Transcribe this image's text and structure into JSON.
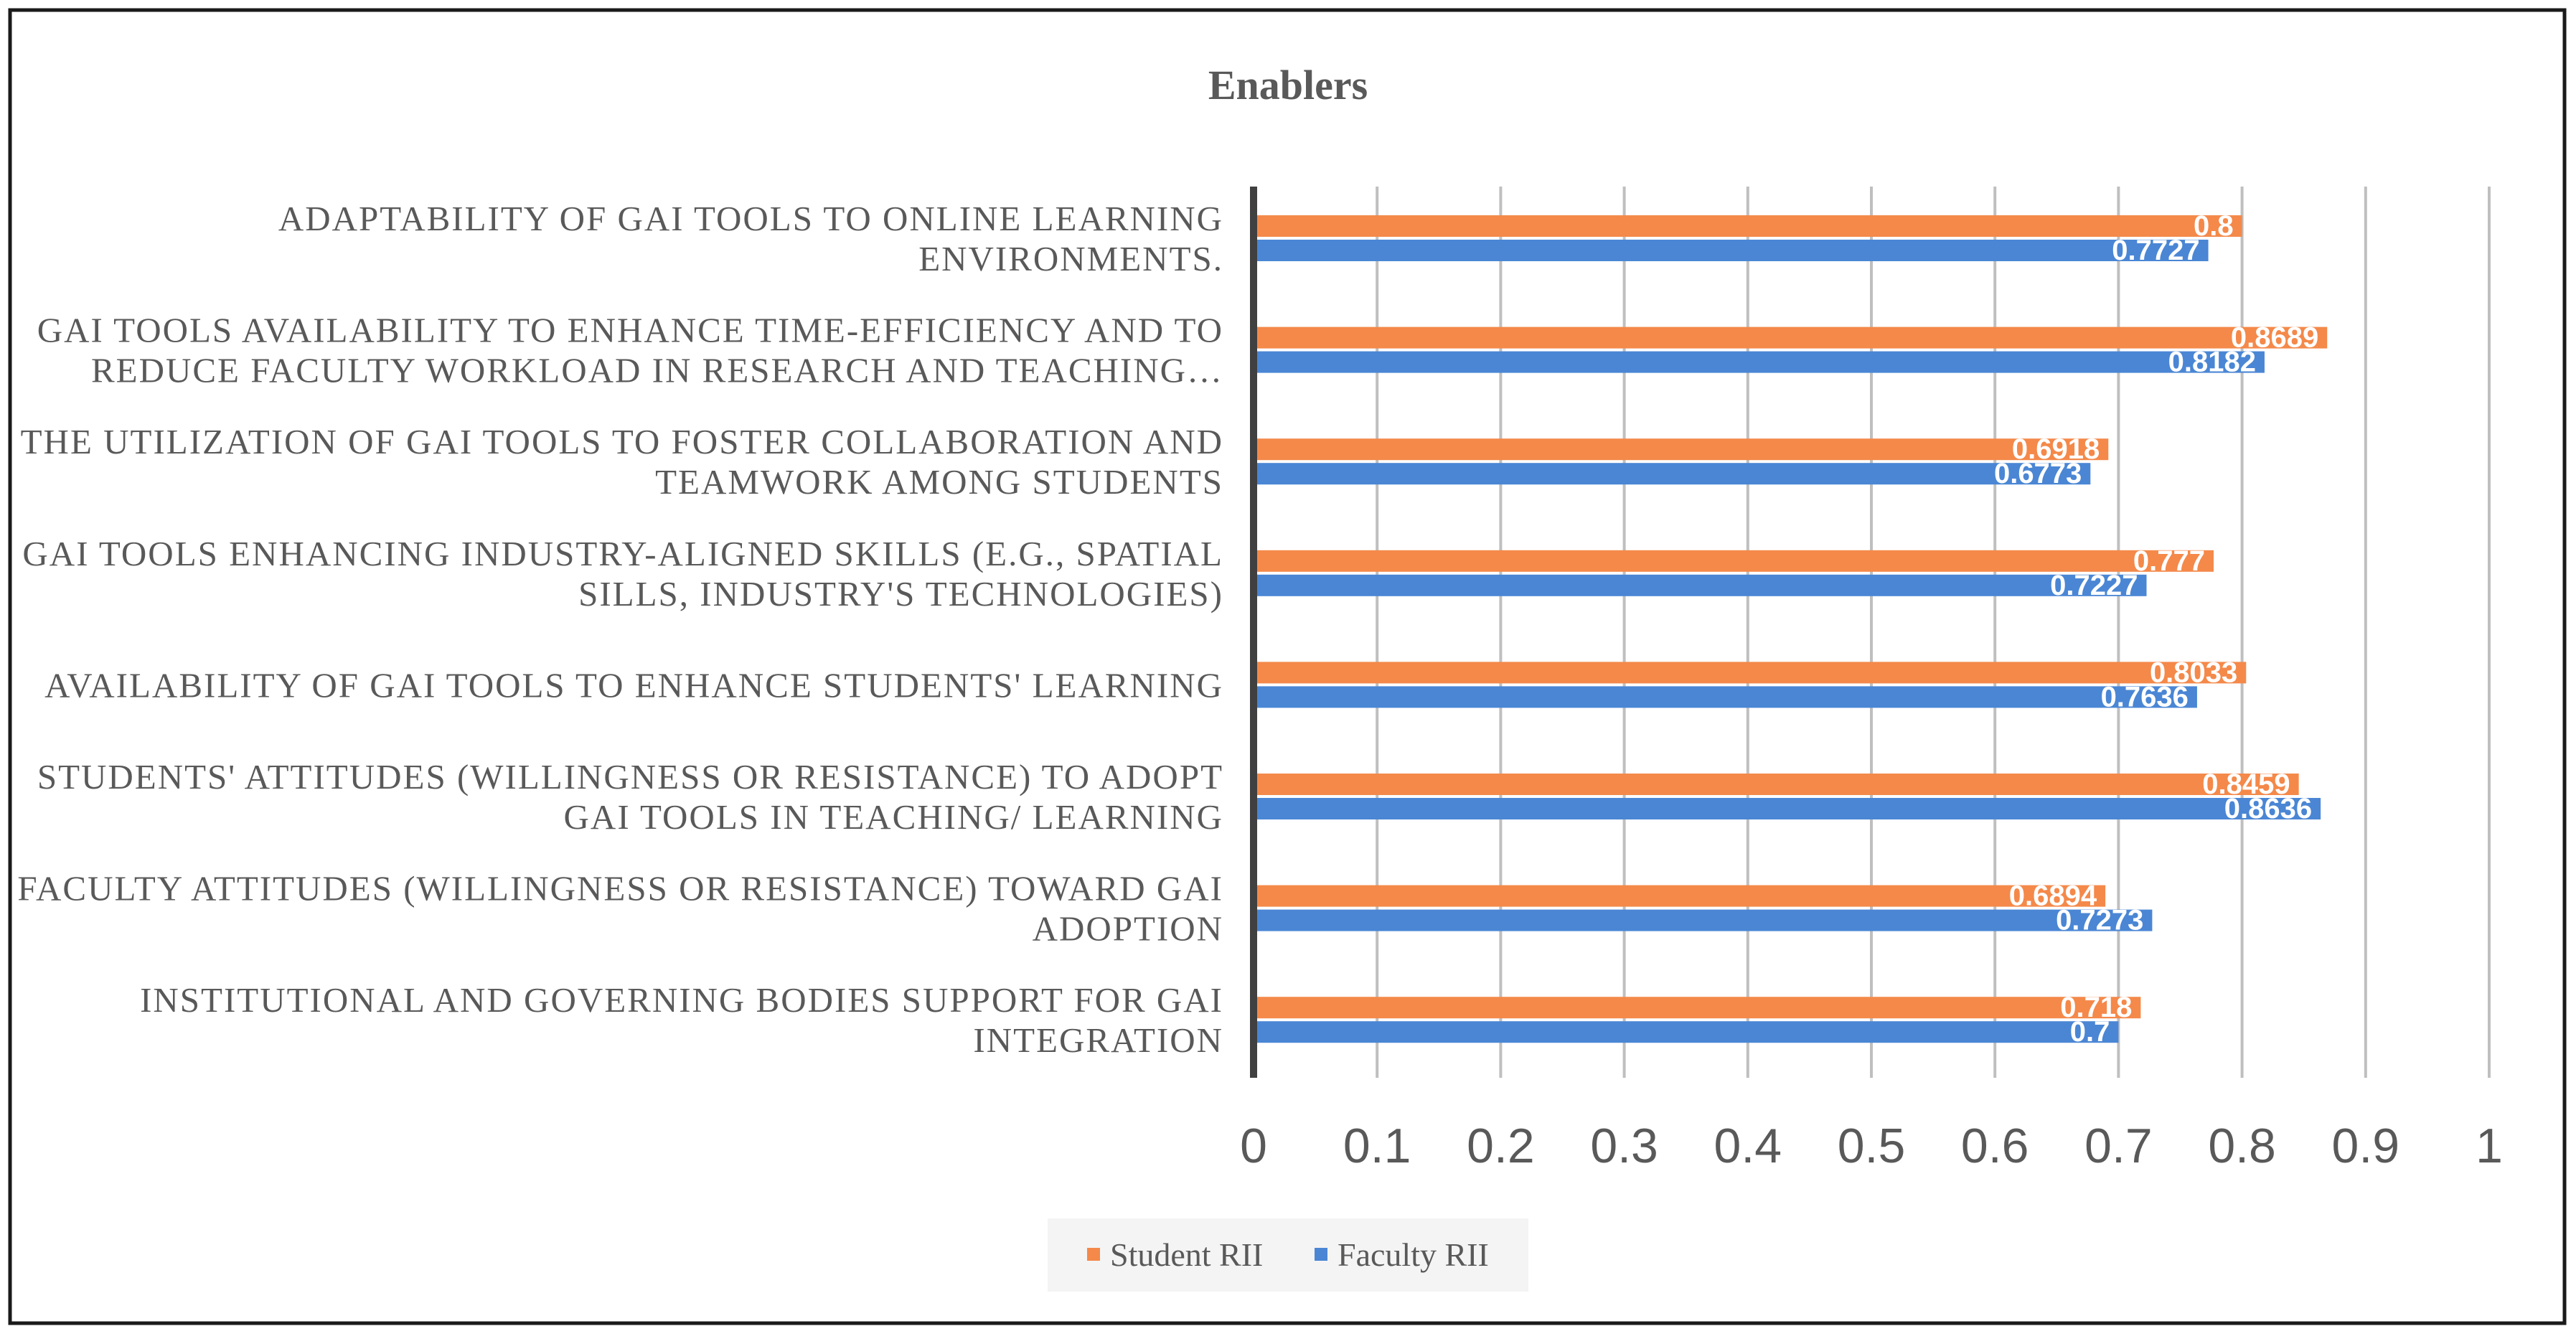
{
  "chart_data": {
    "type": "bar",
    "orientation": "horizontal",
    "title": "Enablers",
    "xlabel": "",
    "ylabel": "",
    "xlim": [
      0,
      1
    ],
    "x_ticks": [
      "0",
      "0.1",
      "0.2",
      "0.3",
      "0.4",
      "0.5",
      "0.6",
      "0.7",
      "0.8",
      "0.9",
      "1"
    ],
    "grid": "vertical",
    "legend_position": "bottom",
    "categories": [
      [
        "ADAPTABILITY OF GAI TOOLS TO ONLINE LEARNING",
        "ENVIRONMENTS."
      ],
      [
        "GAI TOOLS AVAILABILITY TO ENHANCE TIME-EFFICIENCY AND TO",
        "REDUCE FACULTY WORKLOAD IN RESEARCH AND TEACHING…"
      ],
      [
        "THE UTILIZATION OF GAI TOOLS TO FOSTER COLLABORATION AND",
        "TEAMWORK AMONG STUDENTS"
      ],
      [
        "GAI TOOLS ENHANCING INDUSTRY-ALIGNED SKILLS (E.G., SPATIAL",
        "SILLS, INDUSTRY'S TECHNOLOGIES)"
      ],
      [
        "AVAILABILITY OF GAI TOOLS TO ENHANCE STUDENTS' LEARNING"
      ],
      [
        "STUDENTS' ATTITUDES (WILLINGNESS OR RESISTANCE) TO ADOPT",
        "GAI TOOLS IN TEACHING/ LEARNING"
      ],
      [
        "FACULTY ATTITUDES (WILLINGNESS OR RESISTANCE) TOWARD GAI",
        "ADOPTION"
      ],
      [
        "INSTITUTIONAL AND GOVERNING BODIES SUPPORT FOR GAI",
        "INTEGRATION"
      ]
    ],
    "series": [
      {
        "name": "Student RII",
        "color": "#F4894A",
        "values": [
          0.8,
          0.8689,
          0.6918,
          0.777,
          0.8033,
          0.8459,
          0.6894,
          0.718
        ],
        "labels": [
          "0.8",
          "0.8689",
          "0.6918",
          "0.777",
          "0.8033",
          "0.8459",
          "0.6894",
          "0.718"
        ]
      },
      {
        "name": "Faculty RII",
        "color": "#4A86D4",
        "values": [
          0.7727,
          0.8182,
          0.6773,
          0.7227,
          0.7636,
          0.8636,
          0.7273,
          0.7
        ],
        "labels": [
          "0.7727",
          "0.8182",
          "0.6773",
          "0.7227",
          "0.7636",
          "0.8636",
          "0.7273",
          "0.7"
        ]
      }
    ]
  }
}
